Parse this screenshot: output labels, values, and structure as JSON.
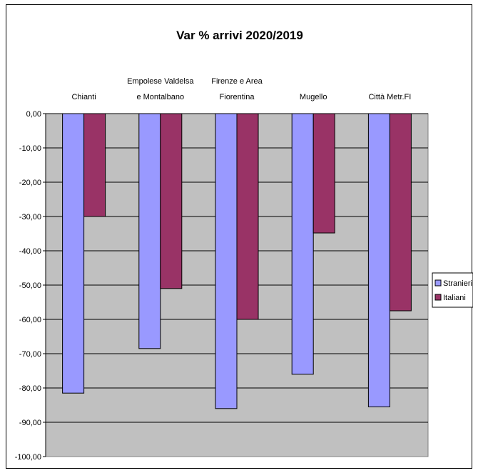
{
  "chart_data": {
    "type": "bar",
    "title": "Var % arrivi 2020/2019",
    "categories": [
      [
        "Chianti"
      ],
      [
        "Empolese Valdelsa",
        "e Montalbano"
      ],
      [
        "Firenze e Area",
        "Fiorentina"
      ],
      [
        "Mugello"
      ],
      [
        "Città Metr.FI"
      ]
    ],
    "series": [
      {
        "name": "Stranieri",
        "values": [
          -81.5,
          -68.5,
          -86.0,
          -76.0,
          -85.5
        ],
        "color": "#9999ff"
      },
      {
        "name": "Italiani",
        "values": [
          -30.0,
          -51.0,
          -60.0,
          -34.8,
          -57.5
        ],
        "color": "#993366"
      }
    ],
    "ylim": [
      -100,
      0
    ],
    "yticks": [
      "0,00",
      "-10,00",
      "-20,00",
      "-30,00",
      "-40,00",
      "-50,00",
      "-60,00",
      "-70,00",
      "-80,00",
      "-90,00",
      "-100,00"
    ],
    "grid": true,
    "plot_background": "#c0c0c0",
    "legend_position": "right"
  }
}
